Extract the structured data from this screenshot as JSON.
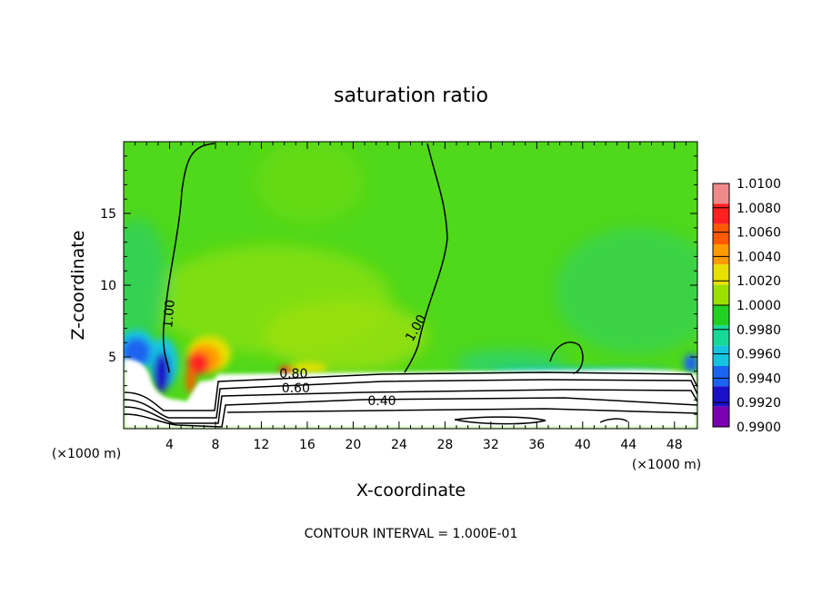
{
  "chart_data": {
    "type": "heatmap",
    "title": "saturation ratio",
    "xlabel": "X-coordinate",
    "ylabel": "Z-coordinate",
    "x_unit": "(×1000 m)",
    "xlim": [
      0,
      50
    ],
    "ylim": [
      0,
      20
    ],
    "x_ticks": [
      4,
      8,
      12,
      16,
      20,
      24,
      28,
      32,
      36,
      40,
      44,
      48
    ],
    "y_ticks": [
      5,
      10,
      15
    ],
    "footer": "CONTOUR INTERVAL = 1.000E-01",
    "colorbar": {
      "labels": [
        "1.0100",
        "1.0080",
        "1.0060",
        "1.0040",
        "1.0020",
        "1.0000",
        "0.9980",
        "0.9960",
        "0.9940",
        "0.9920",
        "0.9900"
      ],
      "colors": [
        "#f08a8a",
        "#ff2020",
        "#ff5a00",
        "#ff9a00",
        "#e8e000",
        "#9be000",
        "#22d022",
        "#18d898",
        "#16c4e0",
        "#1a64f0",
        "#1a10c8",
        "#7a00b0"
      ]
    },
    "contour_labels": [
      {
        "text": "1.00",
        "x": 4.0,
        "y": 8.0,
        "angle": -85
      },
      {
        "text": "1.00",
        "x": 25.5,
        "y": 7.0,
        "angle": -60
      },
      {
        "text": "0.80",
        "x": 14.8,
        "y": 3.8,
        "angle": 0
      },
      {
        "text": "0.60",
        "x": 15.0,
        "y": 2.8,
        "angle": 0
      },
      {
        "text": "0.40",
        "x": 22.5,
        "y": 1.9,
        "angle": 0
      }
    ]
  }
}
